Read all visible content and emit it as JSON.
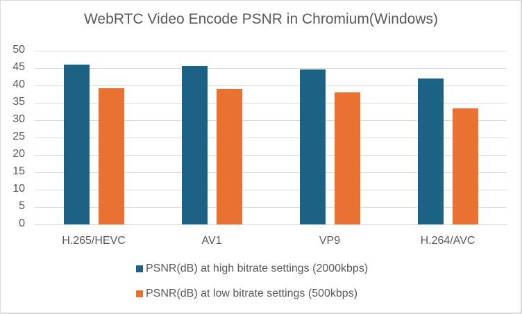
{
  "chart_data": {
    "type": "bar",
    "title": "WebRTC Video Encode PSNR in Chromium(Windows)",
    "xlabel": "",
    "ylabel": "",
    "categories": [
      "H.265/HEVC",
      "AV1",
      "VP9",
      "H.264/AVC"
    ],
    "series": [
      {
        "name": "PSNR(dB) at high bitrate settings (2000kbps)",
        "color": "#1b6284",
        "values": [
          46.0,
          45.6,
          44.6,
          42.0
        ]
      },
      {
        "name": "PSNR(dB) at low bitrate settings (500kbps)",
        "color": "#e97132",
        "values": [
          39.2,
          39.0,
          38.0,
          33.4
        ]
      }
    ],
    "ylim": [
      0,
      50
    ],
    "yticks": [
      0,
      5,
      10,
      15,
      20,
      25,
      30,
      35,
      40,
      45,
      50
    ],
    "grid": true,
    "legend_position": "bottom"
  }
}
